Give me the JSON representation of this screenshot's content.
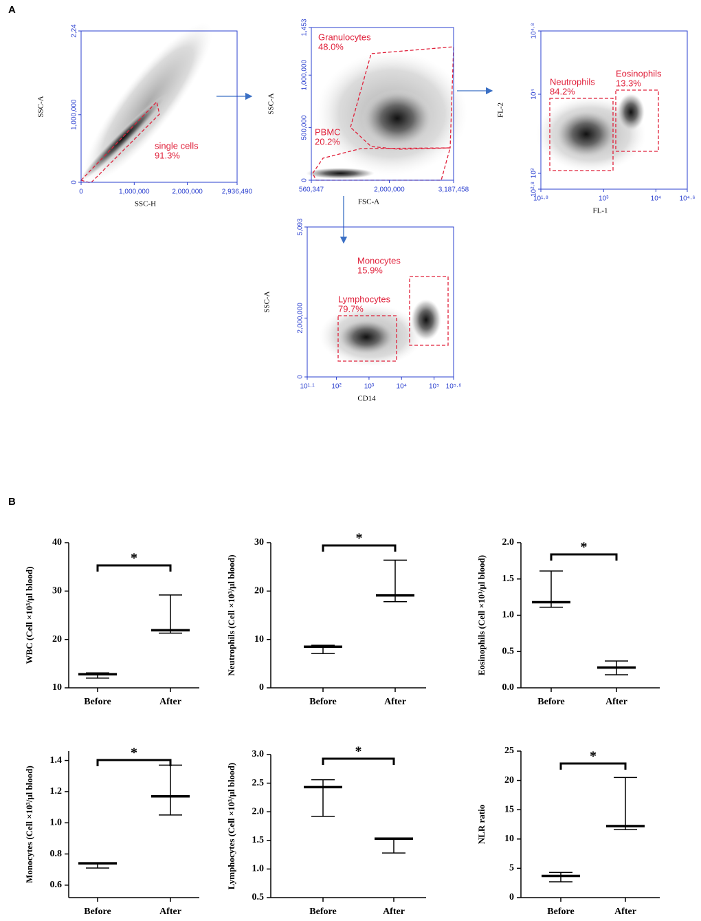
{
  "panels": [
    "A",
    "B"
  ],
  "chart_data": [
    {
      "type": "flow",
      "xlabel": "SSC-H",
      "ylabel": "SSC-A",
      "xlim": [
        0,
        2936490
      ],
      "xticks": [
        0,
        {
          "value": 1000000,
          "label": "1,000,000"
        },
        {
          "value": 2000000,
          "label": "2,000,000"
        },
        {
          "value": 2936490,
          "label": "2,936,490"
        }
      ],
      "ylim": [
        0,
        2240000
      ],
      "yticks": [
        0,
        {
          "value": 1000000,
          "label": "1,000,000"
        },
        {
          "value": 2240000,
          "label": "2,24"
        }
      ],
      "gates": [
        {
          "name": "single cells",
          "percent": "91.3%"
        }
      ]
    },
    {
      "type": "flow",
      "xlabel": "FSC-A",
      "ylabel": "SSC-A",
      "xlim": [
        560347,
        3187458
      ],
      "xticks": [
        {
          "value": 560347,
          "label": "560,347"
        },
        {
          "value": 2000000,
          "label": "2,000,000"
        },
        {
          "value": 3187458,
          "label": "3,187,458"
        }
      ],
      "ylim": [
        0,
        1453000
      ],
      "yticks": [
        0,
        {
          "value": 500000,
          "label": "500,000"
        },
        {
          "value": 1000000,
          "label": "1,000,000"
        },
        {
          "value": 1453000,
          "label": "1,453"
        }
      ],
      "gates": [
        {
          "name": "Granulocytes",
          "percent": "48.0%"
        },
        {
          "name": "PBMC",
          "percent": "20.2%"
        }
      ]
    },
    {
      "type": "flow",
      "xlabel": "FL-1",
      "ylabel": "FL-2",
      "log": true,
      "xlim": [
        63.1,
        39811
      ],
      "xticks": [
        {
          "value": 63.1,
          "label": "10¹·⁸"
        },
        {
          "value": 1000,
          "label": "10³"
        },
        {
          "value": 10000,
          "label": "10⁴"
        },
        {
          "value": 39811,
          "label": "10⁴·⁶"
        }
      ],
      "ylim": [
        631,
        63096
      ],
      "yticks": [
        {
          "value": 631,
          "label": "10²·⁸"
        },
        {
          "value": 1000,
          "label": "10³"
        },
        {
          "value": 10000,
          "label": "10⁴"
        },
        {
          "value": 63096,
          "label": "10⁴·⁸"
        }
      ],
      "gates": [
        {
          "name": "Neutrophils",
          "percent": "84.2%"
        },
        {
          "name": "Eosinophils",
          "percent": "13.3%"
        }
      ]
    },
    {
      "type": "flow",
      "xlabel": "CD14",
      "ylabel": "SSC-A",
      "log": true,
      "ylog": false,
      "xlim": [
        12.6,
        398107
      ],
      "xticks": [
        {
          "value": 12.6,
          "label": "10¹·¹"
        },
        {
          "value": 100,
          "label": "10²"
        },
        {
          "value": 1000,
          "label": "10³"
        },
        {
          "value": 10000,
          "label": "10⁴"
        },
        {
          "value": 100000,
          "label": "10⁵"
        },
        {
          "value": 398107,
          "label": "10⁵·⁶"
        }
      ],
      "ylim": [
        0,
        5093000
      ],
      "yticks": [
        0,
        {
          "value": 2000000,
          "label": "2,000,000"
        },
        {
          "value": 5093000,
          "label": "5,093"
        }
      ],
      "gates": [
        {
          "name": "Monocytes",
          "percent": "15.9%"
        },
        {
          "name": "Lymphocytes",
          "percent": "79.7%"
        }
      ]
    },
    {
      "type": "range",
      "ylabel": "WBC (Cell ×10³/μl blood)",
      "categories": [
        "Before",
        "After"
      ],
      "values": [
        12.8,
        21.9
      ],
      "min": [
        12.0,
        21.3
      ],
      "max": [
        13.1,
        29.2
      ],
      "ylim": [
        10,
        40
      ],
      "yticks": [
        10,
        20,
        30,
        40
      ],
      "significance": "*"
    },
    {
      "type": "range",
      "ylabel": "Neutrophils (Cell ×10³/μl blood)",
      "categories": [
        "Before",
        "After"
      ],
      "values": [
        8.5,
        19.1
      ],
      "min": [
        7.1,
        17.8
      ],
      "max": [
        8.8,
        26.4
      ],
      "ylim": [
        0,
        30
      ],
      "yticks": [
        0,
        10,
        20,
        30
      ],
      "significance": "*"
    },
    {
      "type": "range",
      "ylabel": "Eosinophils (Cell ×10³/μl blood)",
      "categories": [
        "Before",
        "After"
      ],
      "values": [
        1.18,
        0.28
      ],
      "min": [
        1.11,
        0.18
      ],
      "max": [
        1.61,
        0.37
      ],
      "ylim": [
        0,
        2
      ],
      "yticks": [
        {
          "value": 0,
          "label": "0.0"
        },
        0.5,
        {
          "value": 1,
          "label": "1.0"
        },
        1.5,
        {
          "value": 2,
          "label": "2.0"
        }
      ],
      "significance": "*"
    },
    {
      "type": "range",
      "ylabel": "Monocytes (Cell ×10³/μl blood)",
      "categories": [
        "Before",
        "After"
      ],
      "values": [
        0.74,
        1.17
      ],
      "min": [
        0.71,
        1.05
      ],
      "max": [
        0.74,
        1.37
      ],
      "ylim": [
        0.52,
        1.46
      ],
      "yticks": [
        0.6,
        0.8,
        {
          "value": 1,
          "label": "1.0"
        },
        1.2,
        1.4
      ],
      "significance": "*"
    },
    {
      "type": "range",
      "ylabel": "Lymphocytes (Cell ×10³/μl blood)",
      "categories": [
        "Before",
        "After"
      ],
      "values": [
        2.43,
        1.53
      ],
      "min": [
        1.92,
        1.28
      ],
      "max": [
        2.56,
        1.54
      ],
      "ylim": [
        0.5,
        3
      ],
      "yticks": [
        0.5,
        {
          "value": 1,
          "label": "1.0"
        },
        1.5,
        {
          "value": 2,
          "label": "2.0"
        },
        2.5,
        {
          "value": 3,
          "label": "3.0"
        }
      ],
      "significance": "*"
    },
    {
      "type": "range",
      "ylabel": "NLR ratio",
      "categories": [
        "Before",
        "After"
      ],
      "values": [
        3.7,
        12.2
      ],
      "min": [
        2.7,
        11.6
      ],
      "max": [
        4.3,
        20.5
      ],
      "ylim": [
        0,
        25
      ],
      "yticks": [
        0,
        5,
        10,
        15,
        20,
        25
      ],
      "significance": "*"
    }
  ]
}
